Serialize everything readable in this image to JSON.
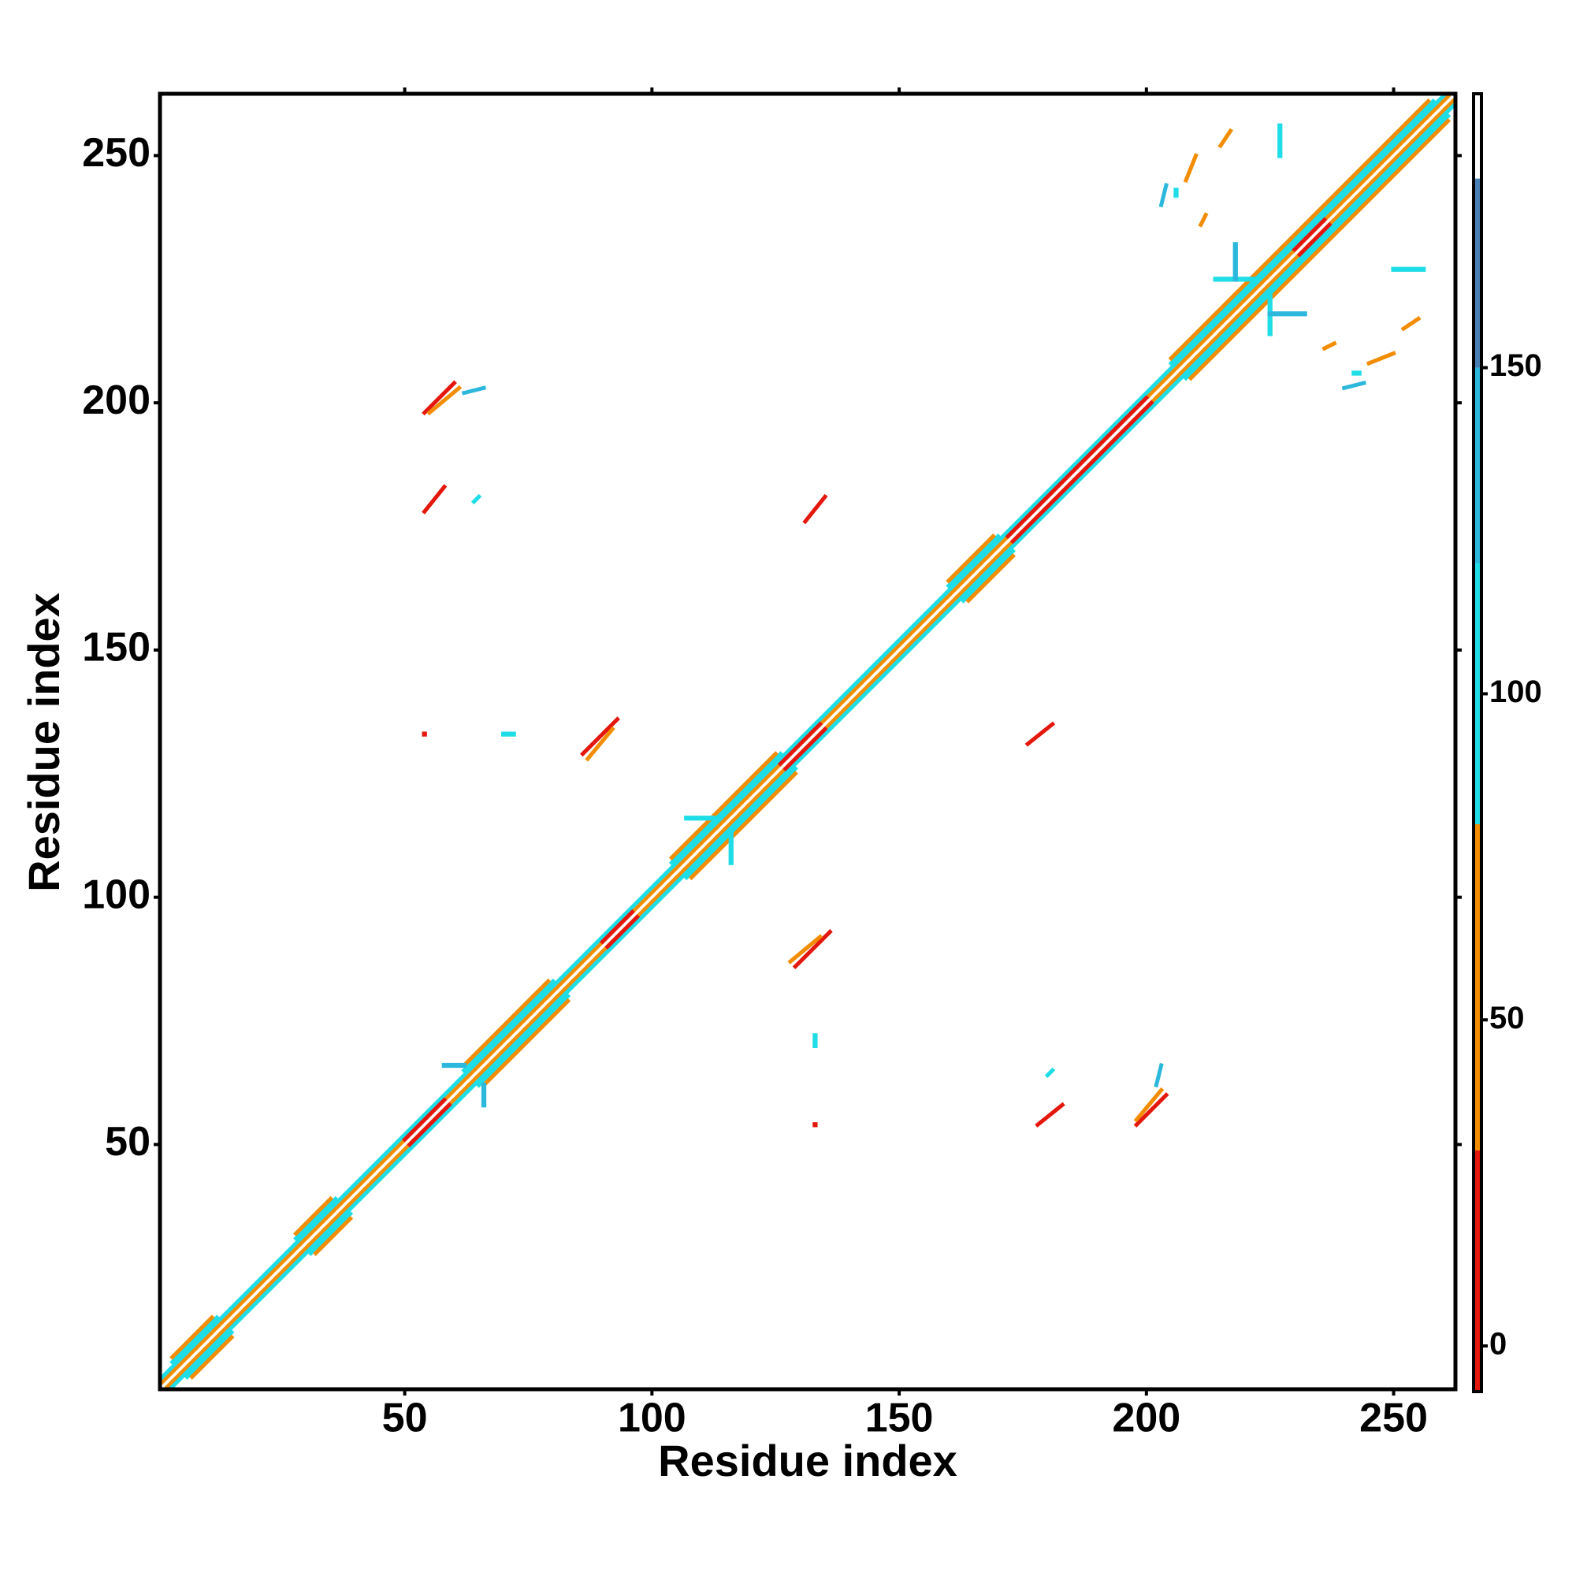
{
  "chart_data": {
    "type": "contact_map",
    "x_label": "Residue index",
    "y_label": "Residue index",
    "xlim": [
      0.5,
      262.5
    ],
    "ylim": [
      0.5,
      262.5
    ],
    "xticks": [
      50,
      100,
      150,
      200,
      250
    ],
    "yticks": [
      50,
      100,
      150,
      200,
      250
    ],
    "symmetric": true,
    "contacts": [
      {
        "x": [
          1,
          261
        ],
        "y": [
          2,
          262
        ],
        "value": 55
      },
      {
        "x": [
          1,
          260
        ],
        "y": [
          3,
          262
        ],
        "value": 95
      },
      {
        "x": [
          3,
          12
        ],
        "y": [
          6,
          15
        ],
        "value": 110
      },
      {
        "x": [
          3,
          11
        ],
        "y": [
          7,
          15
        ],
        "value": 65
      },
      {
        "x": [
          28,
          36
        ],
        "y": [
          31,
          39
        ],
        "value": 110
      },
      {
        "x": [
          28,
          35
        ],
        "y": [
          32,
          39
        ],
        "value": 65
      },
      {
        "x": [
          62,
          80
        ],
        "y": [
          65,
          83
        ],
        "value": 110
      },
      {
        "x": [
          62,
          79
        ],
        "y": [
          66,
          83
        ],
        "value": 65
      },
      {
        "x": [
          104,
          126
        ],
        "y": [
          107,
          129
        ],
        "value": 110
      },
      {
        "x": [
          104,
          125
        ],
        "y": [
          108,
          129
        ],
        "value": 65
      },
      {
        "x": [
          160,
          170
        ],
        "y": [
          163,
          173
        ],
        "value": 110
      },
      {
        "x": [
          160,
          169
        ],
        "y": [
          164,
          173
        ],
        "value": 65
      },
      {
        "x": [
          205,
          258
        ],
        "y": [
          208,
          261
        ],
        "value": 110
      },
      {
        "x": [
          205,
          257
        ],
        "y": [
          209,
          261
        ],
        "value": 65
      },
      {
        "x": [
          50,
          58
        ],
        "y": [
          51,
          59
        ],
        "value": 10
      },
      {
        "x": [
          90,
          96
        ],
        "y": [
          91,
          97
        ],
        "value": 10
      },
      {
        "x": [
          126,
          134
        ],
        "y": [
          127,
          135
        ],
        "value": 10
      },
      {
        "x": [
          172,
          200
        ],
        "y": [
          173,
          201
        ],
        "value": 15
      },
      {
        "x": [
          230,
          236
        ],
        "y": [
          231,
          237
        ],
        "value": 10
      },
      {
        "x": [
          86,
          93
        ],
        "y": [
          129,
          136
        ],
        "value": 20
      },
      {
        "x": [
          87,
          92
        ],
        "y": [
          128,
          134
        ],
        "value": 45
      },
      {
        "x": [
          54,
          60
        ],
        "y": [
          198,
          204
        ],
        "value": 15
      },
      {
        "x": [
          55,
          61
        ],
        "y": [
          198,
          203
        ],
        "value": 40
      },
      {
        "x": [
          131,
          135
        ],
        "y": [
          176,
          181
        ],
        "value": 15
      },
      {
        "x": [
          54,
          58
        ],
        "y": [
          178,
          183
        ],
        "value": 12
      },
      {
        "x": [
          64,
          65
        ],
        "y": [
          180,
          181
        ],
        "value": 110
      },
      {
        "x": [
          54,
          54
        ],
        "y": [
          133,
          133
        ],
        "value": 10
      },
      {
        "x": [
          70,
          72
        ],
        "y": [
          133,
          133
        ],
        "value": 105
      },
      {
        "x": [
          62,
          66
        ],
        "y": [
          202,
          203
        ],
        "value": 120
      },
      {
        "x": [
          58,
          62
        ],
        "y": [
          66,
          66
        ],
        "value": 135
      },
      {
        "x": [
          107,
          113
        ],
        "y": [
          116,
          116
        ],
        "value": 100
      },
      {
        "x": [
          206,
          206
        ],
        "y": [
          242,
          243
        ],
        "value": 110
      },
      {
        "x": [
          203,
          204
        ],
        "y": [
          240,
          244
        ],
        "value": 140
      },
      {
        "x": [
          227,
          227
        ],
        "y": [
          250,
          256
        ],
        "value": 115
      },
      {
        "x": [
          208,
          210
        ],
        "y": [
          245,
          250
        ],
        "value": 60
      },
      {
        "x": [
          215,
          217
        ],
        "y": [
          252,
          255
        ],
        "value": 60
      },
      {
        "x": [
          214,
          222
        ],
        "y": [
          225,
          225
        ],
        "value": 100
      },
      {
        "x": [
          218,
          218
        ],
        "y": [
          225,
          232
        ],
        "value": 140
      },
      {
        "x": [
          211,
          212
        ],
        "y": [
          236,
          238
        ],
        "value": 60
      }
    ],
    "colorbar": {
      "ylim": [
        -7,
        192
      ],
      "yticks": [
        0,
        50,
        100,
        150
      ],
      "bands": [
        {
          "from": -7,
          "to": 30,
          "color": "#e3170c"
        },
        {
          "from": 30,
          "to": 80,
          "color": "#f28c00"
        },
        {
          "from": 80,
          "to": 120,
          "color": "#1fdde6"
        },
        {
          "from": 120,
          "to": 150,
          "color": "#2cb8dc"
        },
        {
          "from": 150,
          "to": 179,
          "color": "#4a7fb5"
        },
        {
          "from": 179,
          "to": 192,
          "color": "#ffffff"
        }
      ]
    }
  }
}
